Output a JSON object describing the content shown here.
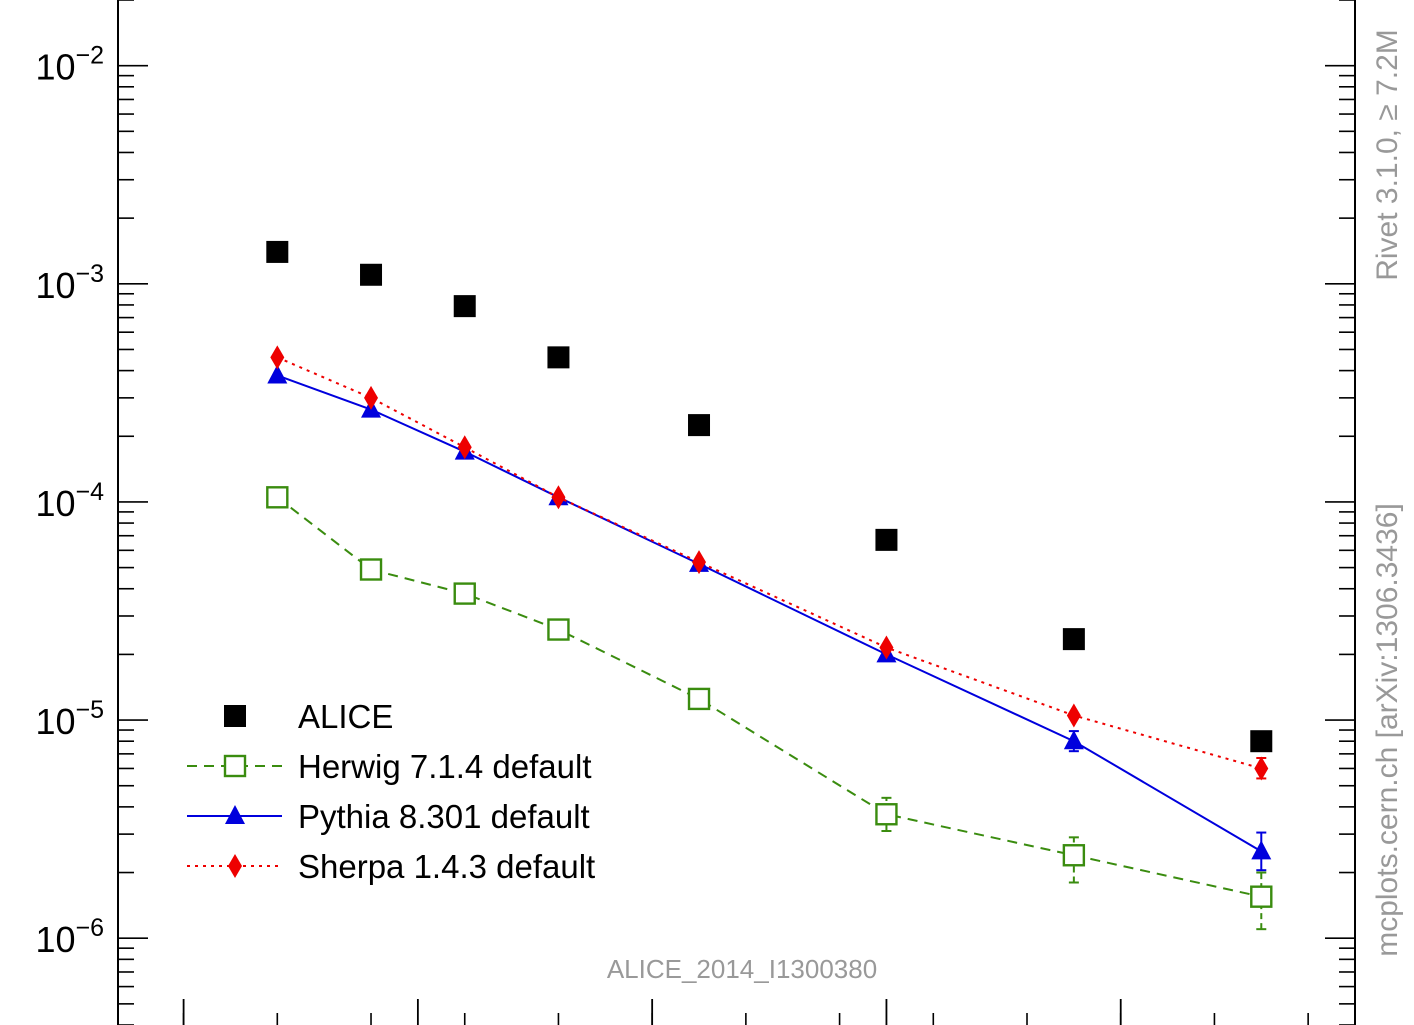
{
  "chart_data": {
    "type": "scatter",
    "yscale": "log",
    "ylim": [
      4e-07,
      0.02
    ],
    "x": [
      1,
      2,
      3,
      4,
      5.5,
      7.5,
      9.5,
      11.5
    ],
    "xlim": [
      -0.7,
      12.5
    ],
    "y_ticks": [
      {
        "value": 0.01,
        "base": "10",
        "exp": "−2"
      },
      {
        "value": 0.001,
        "base": "10",
        "exp": "−3"
      },
      {
        "value": 0.0001,
        "base": "10",
        "exp": "−4"
      },
      {
        "value": 1e-05,
        "base": "10",
        "exp": "−5"
      },
      {
        "value": 1e-06,
        "base": "10",
        "exp": "−6"
      }
    ],
    "series": [
      {
        "name": "ALICE",
        "color": "#000000",
        "marker": "square-filled",
        "line": "none",
        "values": [
          0.0014,
          0.0011,
          0.00079,
          0.00046,
          0.000225,
          6.7e-05,
          2.35e-05,
          8e-06
        ],
        "errors": [
          null,
          null,
          null,
          null,
          null,
          null,
          null,
          null
        ]
      },
      {
        "name": "Herwig 7.1.4 default",
        "color": "#3a8c0f",
        "marker": "square-open",
        "line": "dashed",
        "values": [
          0.000105,
          4.9e-05,
          3.8e-05,
          2.6e-05,
          1.25e-05,
          3.7e-06,
          2.4e-06,
          1.55e-06
        ],
        "errors": [
          null,
          null,
          null,
          null,
          null,
          [
            3.1e-06,
            4.4e-06
          ],
          [
            1.8e-06,
            2.9e-06
          ],
          [
            1.1e-06,
            2e-06
          ]
        ]
      },
      {
        "name": "Pythia 8.301 default",
        "color": "#0000dd",
        "marker": "triangle-filled",
        "line": "solid",
        "values": [
          0.00038,
          0.000265,
          0.00017,
          0.000105,
          5.2e-05,
          2e-05,
          8e-06,
          2.5e-06
        ],
        "errors": [
          null,
          null,
          null,
          null,
          null,
          null,
          [
            7.2e-06,
            8.9e-06
          ],
          [
            2.05e-06,
            3.05e-06
          ]
        ]
      },
      {
        "name": "Sherpa 1.4.3 default",
        "color": "#ee0000",
        "marker": "diamond-filled",
        "line": "dotted",
        "values": [
          0.00046,
          0.0003,
          0.000178,
          0.000105,
          5.3e-05,
          2.15e-05,
          1.05e-05,
          6e-06
        ],
        "errors": [
          null,
          null,
          null,
          null,
          null,
          null,
          null,
          [
            5.4e-06,
            6.7e-06
          ]
        ]
      }
    ],
    "legend": {
      "placement": "bottom-left"
    },
    "analysis_label": "ALICE_2014_I1300380",
    "right_labels": [
      "Rivet 3.1.0, ≥ 7.2M",
      "mcplots.cern.ch [arXiv:1306.3436]"
    ]
  }
}
